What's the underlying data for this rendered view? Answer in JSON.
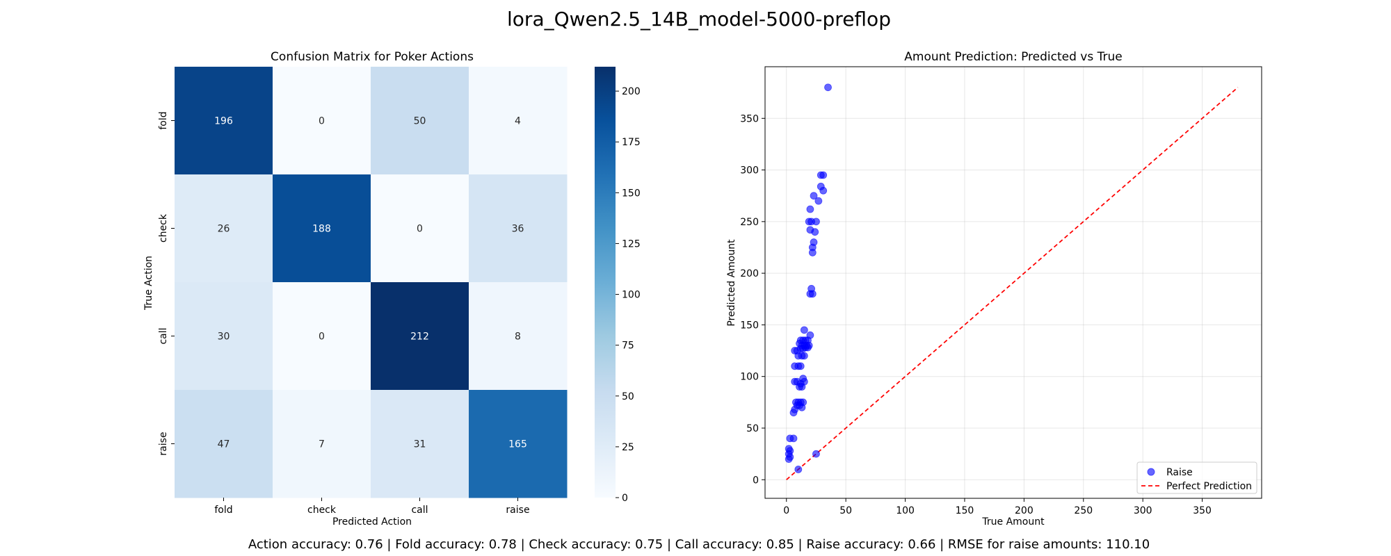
{
  "figure": {
    "suptitle": "lora_Qwen2.5_14B_model-5000-preflop",
    "footer": "Action accuracy: 0.76 | Fold accuracy: 0.78 | Check accuracy: 0.75 | Call accuracy: 0.85 | Raise accuracy: 0.66 | RMSE for raise amounts: 110.10"
  },
  "chart_data": [
    {
      "type": "heatmap",
      "title": "Confusion Matrix for Poker Actions",
      "xlabel": "Predicted Action",
      "ylabel": "True Action",
      "x_categories": [
        "fold",
        "check",
        "call",
        "raise"
      ],
      "y_categories": [
        "fold",
        "check",
        "call",
        "raise"
      ],
      "matrix": [
        [
          196,
          0,
          50,
          4
        ],
        [
          26,
          188,
          0,
          36
        ],
        [
          30,
          0,
          212,
          8
        ],
        [
          47,
          7,
          31,
          165
        ]
      ],
      "colormap": "Blues",
      "colorbar_range": [
        0,
        212
      ],
      "colorbar_ticks": [
        0,
        25,
        50,
        75,
        100,
        125,
        150,
        175,
        200
      ]
    },
    {
      "type": "scatter",
      "title": "Amount Prediction: Predicted vs True",
      "xlabel": "True Amount",
      "ylabel": "Predicted Amount",
      "xlim": [
        -18,
        400
      ],
      "ylim": [
        -18,
        400
      ],
      "xticks": [
        0,
        50,
        100,
        150,
        200,
        250,
        300,
        350
      ],
      "yticks": [
        0,
        50,
        100,
        150,
        200,
        250,
        300,
        350
      ],
      "grid": true,
      "legend_position": "lower-right",
      "series": [
        {
          "name": "Raise",
          "kind": "points",
          "color": "#0000ff",
          "points": [
            [
              35,
              380
            ],
            [
              29,
              295
            ],
            [
              31,
              295
            ],
            [
              29,
              284
            ],
            [
              31,
              280
            ],
            [
              27,
              270
            ],
            [
              23,
              275
            ],
            [
              20,
              262
            ],
            [
              19,
              250
            ],
            [
              21,
              250
            ],
            [
              25,
              250
            ],
            [
              20,
              242
            ],
            [
              24,
              240
            ],
            [
              23,
              230
            ],
            [
              22,
              225
            ],
            [
              22,
              220
            ],
            [
              21,
              185
            ],
            [
              20,
              180
            ],
            [
              22,
              180
            ],
            [
              15,
              145
            ],
            [
              20,
              140
            ],
            [
              12,
              135
            ],
            [
              14,
              135
            ],
            [
              16,
              135
            ],
            [
              18,
              135
            ],
            [
              11,
              132
            ],
            [
              13,
              130
            ],
            [
              15,
              130
            ],
            [
              17,
              130
            ],
            [
              19,
              130
            ],
            [
              12,
              127
            ],
            [
              14,
              127
            ],
            [
              16,
              128
            ],
            [
              18,
              128
            ],
            [
              7,
              125
            ],
            [
              9,
              125
            ],
            [
              13,
              120
            ],
            [
              15,
              120
            ],
            [
              10,
              120
            ],
            [
              7,
              110
            ],
            [
              10,
              110
            ],
            [
              12,
              110
            ],
            [
              14,
              98
            ],
            [
              15,
              95
            ],
            [
              7,
              95
            ],
            [
              9,
              95
            ],
            [
              11,
              90
            ],
            [
              13,
              90
            ],
            [
              12,
              93
            ],
            [
              8,
              75
            ],
            [
              10,
              75
            ],
            [
              12,
              75
            ],
            [
              14,
              75
            ],
            [
              11,
              72
            ],
            [
              13,
              70
            ],
            [
              9,
              72
            ],
            [
              7,
              68
            ],
            [
              6,
              65
            ],
            [
              3,
              40
            ],
            [
              6,
              40
            ],
            [
              2,
              30
            ],
            [
              3,
              28
            ],
            [
              2,
              25
            ],
            [
              3,
              22
            ],
            [
              2,
              20
            ],
            [
              10,
              10
            ],
            [
              25,
              25
            ]
          ]
        },
        {
          "name": "Perfect Prediction",
          "kind": "line",
          "color": "#ff0000",
          "dash": "6,4",
          "points": [
            [
              0,
              0
            ],
            [
              380,
              380
            ]
          ]
        }
      ]
    }
  ]
}
